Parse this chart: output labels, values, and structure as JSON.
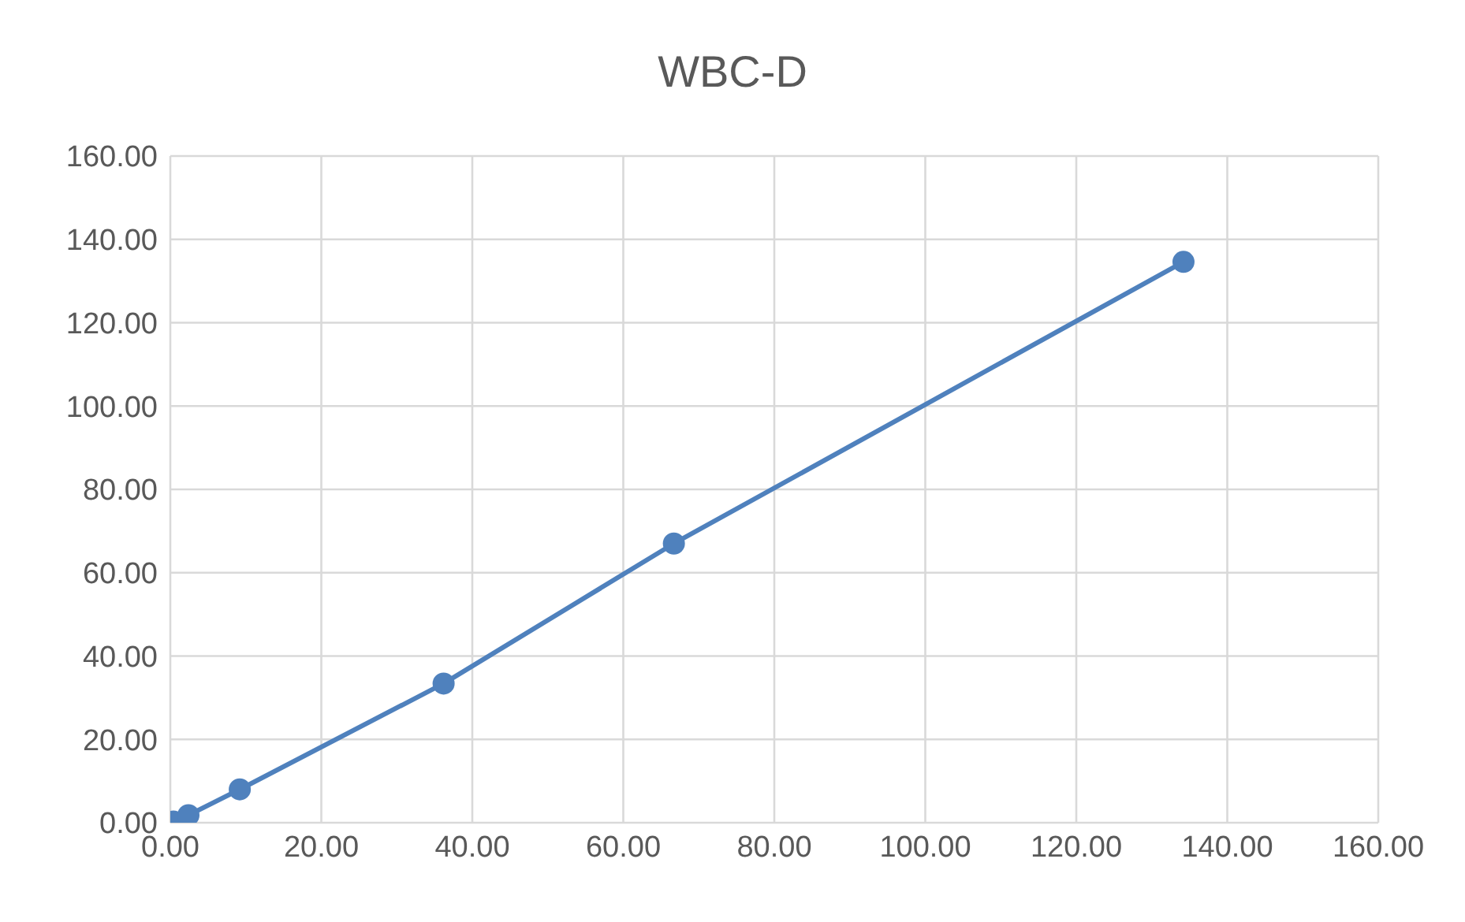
{
  "chart_data": {
    "type": "line",
    "title": "WBC-D",
    "x": [
      0.4,
      2.4,
      9.2,
      36.2,
      66.7,
      134.2
    ],
    "series": [
      {
        "color": "#4f81bd",
        "values": [
          0.3,
          1.8,
          8.0,
          33.4,
          67.0,
          134.6
        ]
      }
    ],
    "xlim": [
      0,
      160
    ],
    "xticks": [
      {
        "value": 0,
        "label": "0.00"
      },
      {
        "value": 20,
        "label": "20.00"
      },
      {
        "value": 40,
        "label": "40.00"
      },
      {
        "value": 60,
        "label": "60.00"
      },
      {
        "value": 80,
        "label": "80.00"
      },
      {
        "value": 100,
        "label": "100.00"
      },
      {
        "value": 120,
        "label": "120.00"
      },
      {
        "value": 140,
        "label": "140.00"
      },
      {
        "value": 160,
        "label": "160.00"
      }
    ],
    "ylim": [
      0,
      160
    ],
    "yticks": [
      {
        "value": 0,
        "label": "0.00"
      },
      {
        "value": 20,
        "label": "20.00"
      },
      {
        "value": 40,
        "label": "40.00"
      },
      {
        "value": 60,
        "label": "60.00"
      },
      {
        "value": 80,
        "label": "80.00"
      },
      {
        "value": 100,
        "label": "100.00"
      },
      {
        "value": 120,
        "label": "120.00"
      },
      {
        "value": 140,
        "label": "140.00"
      },
      {
        "value": 160,
        "label": "160.00"
      }
    ],
    "grid": true,
    "marker": "circle",
    "line_style": "solid"
  }
}
